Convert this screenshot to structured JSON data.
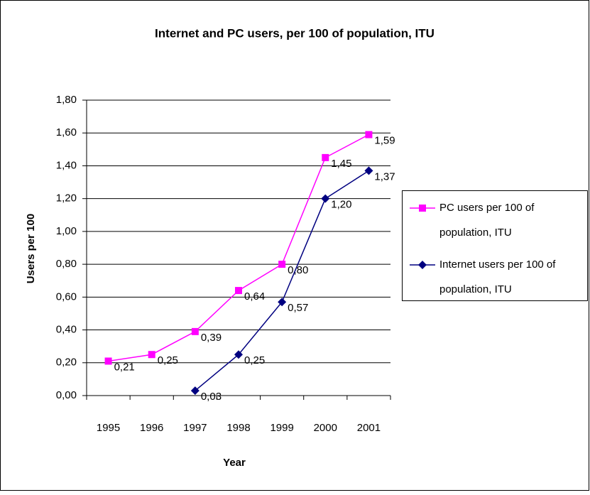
{
  "chart_data": {
    "type": "line",
    "title": "Internet and PC users, per 100 of population, ITU",
    "x_label": "Year",
    "y_label": "Users per 100",
    "categories": [
      "1995",
      "1996",
      "1997",
      "1998",
      "1999",
      "2000",
      "2001"
    ],
    "series": [
      {
        "name": "PC users per 100 of population, ITU",
        "color": "#ff00ff",
        "marker": "square",
        "values": [
          0.21,
          0.25,
          0.39,
          0.64,
          0.8,
          1.45,
          1.59
        ],
        "value_labels": [
          "0,21",
          "0,25",
          "0,39",
          "0,64",
          "0,80",
          "1,45",
          "1,59"
        ]
      },
      {
        "name": "Internet users per 100 of population, ITU",
        "color": "#000080",
        "marker": "diamond",
        "values": [
          null,
          null,
          0.03,
          0.25,
          0.57,
          1.2,
          1.37
        ],
        "value_labels": [
          null,
          null,
          "0,03",
          "0,25",
          "0,57",
          "1,20",
          "1,37"
        ]
      }
    ],
    "ylim": [
      0,
      1.8
    ],
    "yticks": [
      {
        "value": 0,
        "label": "0,00"
      },
      {
        "value": 0.2,
        "label": "0,20"
      },
      {
        "value": 0.4,
        "label": "0,40"
      },
      {
        "value": 0.6,
        "label": "0,60"
      },
      {
        "value": 0.8,
        "label": "0,80"
      },
      {
        "value": 1.0,
        "label": "1,00"
      },
      {
        "value": 1.2,
        "label": "1,20"
      },
      {
        "value": 1.4,
        "label": "1,40"
      },
      {
        "value": 1.6,
        "label": "1,60"
      },
      {
        "value": 1.8,
        "label": "1,80"
      }
    ],
    "grid": true,
    "legend": "right"
  }
}
